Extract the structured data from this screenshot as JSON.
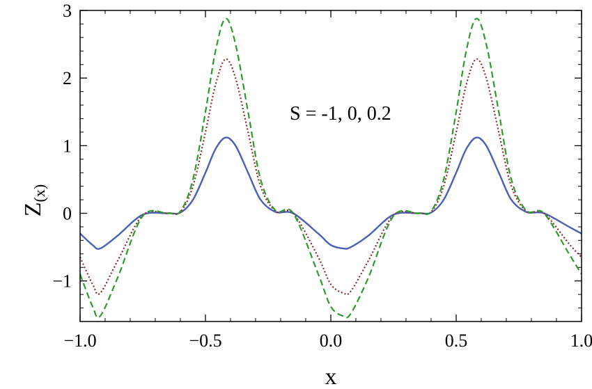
{
  "chart_data": {
    "type": "line",
    "xlabel": "x",
    "ylabel_main": "Z",
    "ylabel_sub": "(x)",
    "annotation": "S = -1, 0, 0.2",
    "xlim": [
      -1.0,
      1.0
    ],
    "ylim": [
      -1.6,
      3.0
    ],
    "x_ticks": [
      -1.0,
      -0.5,
      0.0,
      0.5,
      1.0
    ],
    "x_tick_labels": [
      "−1.0",
      "−0.5",
      "0.0",
      "0.5",
      "1.0"
    ],
    "y_ticks": [
      -1,
      0,
      1,
      2,
      3
    ],
    "y_tick_labels": [
      "−1",
      "0",
      "1",
      "2",
      "3"
    ],
    "grid": false,
    "x": [
      -1.0,
      -0.95,
      -0.92,
      -0.85,
      -0.75,
      -0.65,
      -0.6,
      -0.55,
      -0.5,
      -0.46,
      -0.42,
      -0.38,
      -0.33,
      -0.28,
      -0.22,
      -0.15,
      -0.05,
      0.0,
      0.05,
      0.08,
      0.15,
      0.25,
      0.35,
      0.4,
      0.45,
      0.5,
      0.54,
      0.58,
      0.62,
      0.67,
      0.72,
      0.78,
      0.85,
      0.95,
      1.0
    ],
    "series": [
      {
        "style": "solid",
        "color": "#4a5fb5",
        "values": [
          -0.3,
          -0.47,
          -0.52,
          -0.33,
          -0.02,
          0.0,
          0.01,
          0.2,
          0.6,
          0.95,
          1.12,
          1.0,
          0.6,
          0.2,
          0.02,
          0.0,
          -0.3,
          -0.47,
          -0.52,
          -0.5,
          -0.33,
          -0.02,
          0.0,
          0.01,
          0.2,
          0.6,
          0.95,
          1.12,
          1.0,
          0.6,
          0.2,
          0.02,
          0.0,
          -0.2,
          -0.3
        ]
      },
      {
        "style": "dotted",
        "color": "#8b2a2a",
        "values": [
          -0.65,
          -1.05,
          -1.18,
          -0.7,
          -0.03,
          0.0,
          0.02,
          0.4,
          1.2,
          1.9,
          2.28,
          2.0,
          1.2,
          0.4,
          0.03,
          0.0,
          -0.65,
          -1.05,
          -1.18,
          -1.15,
          -0.7,
          -0.03,
          0.0,
          0.02,
          0.4,
          1.2,
          1.9,
          2.28,
          2.0,
          1.2,
          0.4,
          0.03,
          0.0,
          -0.45,
          -0.65
        ]
      },
      {
        "style": "dashed",
        "color": "#2e9a2e",
        "values": [
          -0.9,
          -1.38,
          -1.52,
          -0.95,
          -0.04,
          0.0,
          0.03,
          0.5,
          1.5,
          2.4,
          2.88,
          2.5,
          1.5,
          0.5,
          0.04,
          0.0,
          -0.9,
          -1.38,
          -1.52,
          -1.48,
          -0.95,
          -0.04,
          0.0,
          0.03,
          0.5,
          1.5,
          2.4,
          2.88,
          2.5,
          1.5,
          0.5,
          0.04,
          0.0,
          -0.6,
          -0.9
        ]
      }
    ]
  }
}
